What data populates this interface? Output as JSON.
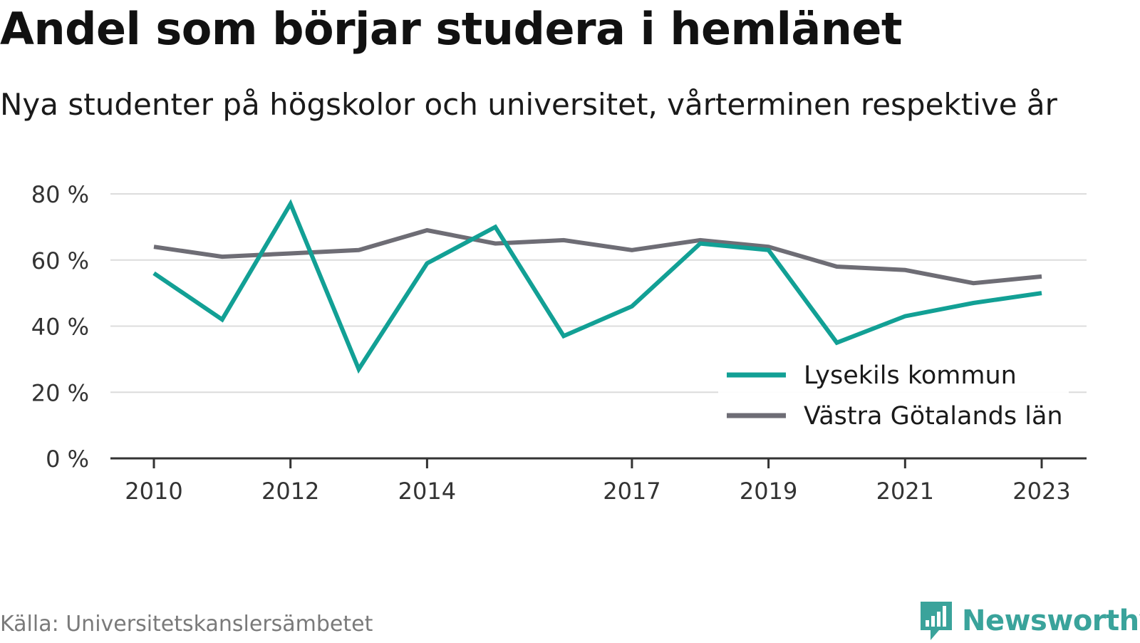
{
  "header": {
    "title": "Andel som börjar studera i hemlänet",
    "subtitle": "Nya studenter på högskolor och universitet, vårterminen respektive år"
  },
  "footer": {
    "source": "Källa: Universitetskanslersämbetet",
    "brand": "Newsworthy",
    "brand_color": "#3aa39b"
  },
  "chart_data": {
    "type": "line",
    "x": [
      2010,
      2011,
      2012,
      2013,
      2014,
      2015,
      2016,
      2017,
      2018,
      2019,
      2020,
      2021,
      2022,
      2023
    ],
    "x_tick_labels": [
      "2010",
      "2012",
      "2014",
      "2017",
      "2019",
      "2021",
      "2023"
    ],
    "x_tick_values": [
      2010,
      2012,
      2014,
      2017,
      2019,
      2021,
      2023
    ],
    "y_ticks": [
      0,
      20,
      40,
      60,
      80
    ],
    "y_tick_labels": [
      "0 %",
      "20 %",
      "40 %",
      "60 %",
      "80 %"
    ],
    "ylim": [
      0,
      80
    ],
    "grid": true,
    "legend_position": "bottom-right",
    "series": [
      {
        "name": "Lysekils kommun",
        "color": "#12a095",
        "values": [
          56,
          42,
          77,
          27,
          59,
          70,
          37,
          46,
          65,
          63,
          35,
          43,
          47,
          50
        ]
      },
      {
        "name": "Västra Götalands län",
        "color": "#6e6d75",
        "values": [
          64,
          61,
          62,
          63,
          69,
          65,
          66,
          63,
          66,
          64,
          58,
          57,
          53,
          55
        ]
      }
    ]
  }
}
